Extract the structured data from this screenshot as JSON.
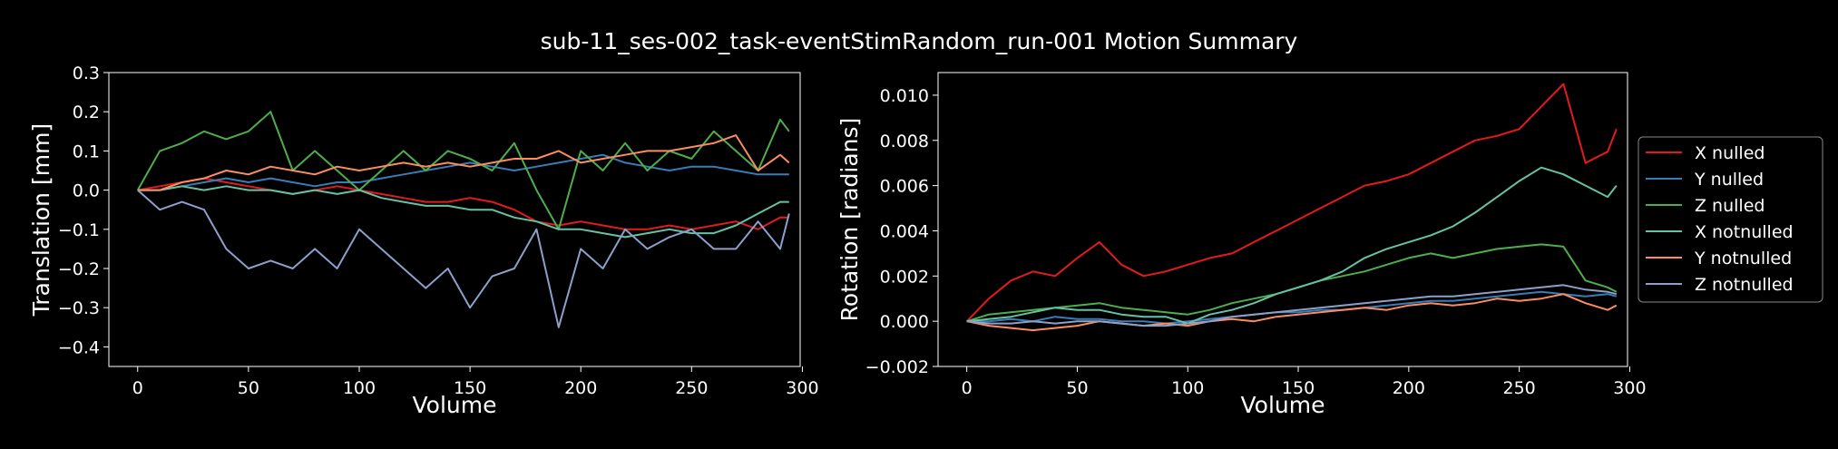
{
  "figure": {
    "title": "sub-11_ses-002_task-eventStimRandom_run-001 Motion Summary",
    "background": "#000000"
  },
  "chart_data": [
    {
      "type": "line",
      "xlabel": "Volume",
      "ylabel": "Translation [mm]",
      "xlim": [
        -13,
        299
      ],
      "ylim": [
        -0.45,
        0.3
      ],
      "xticks": [
        0,
        50,
        100,
        150,
        200,
        250,
        300
      ],
      "yticks": [
        -0.4,
        -0.3,
        -0.2,
        -0.1,
        0.0,
        0.1,
        0.2,
        0.3
      ],
      "ytick_labels": [
        "−0.4",
        "−0.3",
        "−0.2",
        "−0.1",
        "0.0",
        "0.1",
        "0.2",
        "0.3"
      ],
      "grid": false,
      "x": [
        0,
        10,
        20,
        30,
        40,
        50,
        60,
        70,
        80,
        90,
        100,
        110,
        120,
        130,
        140,
        150,
        160,
        170,
        180,
        190,
        200,
        210,
        220,
        230,
        240,
        250,
        260,
        270,
        280,
        290,
        294
      ],
      "series": [
        {
          "name": "X nulled",
          "color": "#e41a1c",
          "values": [
            0.0,
            0.01,
            0.02,
            0.03,
            0.02,
            0.01,
            0.0,
            -0.01,
            0.0,
            0.01,
            0.0,
            -0.01,
            -0.02,
            -0.03,
            -0.03,
            -0.02,
            -0.03,
            -0.05,
            -0.08,
            -0.09,
            -0.08,
            -0.09,
            -0.1,
            -0.1,
            -0.09,
            -0.1,
            -0.09,
            -0.08,
            -0.1,
            -0.07,
            -0.07
          ]
        },
        {
          "name": "Y nulled",
          "color": "#377eb8",
          "values": [
            0.0,
            0.0,
            0.01,
            0.02,
            0.03,
            0.02,
            0.03,
            0.02,
            0.01,
            0.02,
            0.02,
            0.03,
            0.04,
            0.05,
            0.06,
            0.07,
            0.06,
            0.05,
            0.06,
            0.07,
            0.08,
            0.09,
            0.07,
            0.06,
            0.05,
            0.06,
            0.06,
            0.05,
            0.04,
            0.04,
            0.04
          ]
        },
        {
          "name": "Z nulled",
          "color": "#4daf4a",
          "values": [
            0.0,
            0.1,
            0.12,
            0.15,
            0.13,
            0.15,
            0.2,
            0.05,
            0.1,
            0.05,
            0.0,
            0.05,
            0.1,
            0.05,
            0.1,
            0.08,
            0.05,
            0.12,
            0.0,
            -0.1,
            0.1,
            0.05,
            0.12,
            0.05,
            0.1,
            0.08,
            0.15,
            0.1,
            0.05,
            0.18,
            0.15
          ]
        },
        {
          "name": "X notnulled",
          "color": "#66c2a5",
          "values": [
            0.0,
            0.0,
            0.01,
            0.0,
            0.01,
            0.0,
            0.0,
            -0.01,
            0.0,
            -0.01,
            0.0,
            -0.02,
            -0.03,
            -0.04,
            -0.04,
            -0.05,
            -0.05,
            -0.07,
            -0.08,
            -0.1,
            -0.1,
            -0.11,
            -0.12,
            -0.11,
            -0.1,
            -0.11,
            -0.11,
            -0.09,
            -0.06,
            -0.03,
            -0.03
          ]
        },
        {
          "name": "Y notnulled",
          "color": "#fc8d62",
          "values": [
            0.0,
            0.0,
            0.02,
            0.03,
            0.05,
            0.04,
            0.06,
            0.05,
            0.04,
            0.06,
            0.05,
            0.06,
            0.07,
            0.06,
            0.07,
            0.06,
            0.07,
            0.08,
            0.08,
            0.1,
            0.07,
            0.08,
            0.09,
            0.1,
            0.1,
            0.11,
            0.12,
            0.14,
            0.05,
            0.09,
            0.07
          ]
        },
        {
          "name": "Z notnulled",
          "color": "#8da0cb",
          "values": [
            0.0,
            -0.05,
            -0.03,
            -0.05,
            -0.15,
            -0.2,
            -0.18,
            -0.2,
            -0.15,
            -0.2,
            -0.1,
            -0.15,
            -0.2,
            -0.25,
            -0.2,
            -0.3,
            -0.22,
            -0.2,
            -0.1,
            -0.35,
            -0.15,
            -0.2,
            -0.1,
            -0.15,
            -0.12,
            -0.1,
            -0.15,
            -0.15,
            -0.08,
            -0.15,
            -0.06
          ]
        }
      ]
    },
    {
      "type": "line",
      "xlabel": "Volume",
      "ylabel": "Rotation [radians]",
      "xlim": [
        -13,
        299
      ],
      "ylim": [
        -0.002,
        0.011
      ],
      "xticks": [
        0,
        50,
        100,
        150,
        200,
        250,
        300
      ],
      "yticks": [
        -0.002,
        0.0,
        0.002,
        0.004,
        0.006,
        0.008,
        0.01
      ],
      "ytick_labels": [
        "−0.002",
        "0.000",
        "0.002",
        "0.004",
        "0.006",
        "0.008",
        "0.010"
      ],
      "grid": false,
      "legend_position": "outside-right",
      "x": [
        0,
        10,
        20,
        30,
        40,
        50,
        60,
        70,
        80,
        90,
        100,
        110,
        120,
        130,
        140,
        150,
        160,
        170,
        180,
        190,
        200,
        210,
        220,
        230,
        240,
        250,
        260,
        270,
        280,
        290,
        294
      ],
      "series": [
        {
          "name": "X nulled",
          "color": "#e41a1c",
          "values": [
            0.0,
            0.001,
            0.0018,
            0.0022,
            0.002,
            0.0028,
            0.0035,
            0.0025,
            0.002,
            0.0022,
            0.0025,
            0.0028,
            0.003,
            0.0035,
            0.004,
            0.0045,
            0.005,
            0.0055,
            0.006,
            0.0062,
            0.0065,
            0.007,
            0.0075,
            0.008,
            0.0082,
            0.0085,
            0.0095,
            0.0105,
            0.007,
            0.0075,
            0.0085
          ]
        },
        {
          "name": "Y nulled",
          "color": "#377eb8",
          "values": [
            0.0,
            0.0,
            0.0001,
            0.0,
            0.0002,
            0.0001,
            0.0001,
            0.0,
            0.0,
            -0.0001,
            0.0,
            0.0001,
            0.0002,
            0.0003,
            0.0004,
            0.0004,
            0.0005,
            0.0005,
            0.0006,
            0.0007,
            0.0008,
            0.0009,
            0.0009,
            0.001,
            0.0011,
            0.0012,
            0.0013,
            0.0012,
            0.0011,
            0.0012,
            0.0011
          ]
        },
        {
          "name": "Z nulled",
          "color": "#4daf4a",
          "values": [
            0.0,
            0.0003,
            0.0004,
            0.0005,
            0.0006,
            0.0007,
            0.0008,
            0.0006,
            0.0005,
            0.0004,
            0.0003,
            0.0005,
            0.0008,
            0.001,
            0.0012,
            0.0015,
            0.0018,
            0.002,
            0.0022,
            0.0025,
            0.0028,
            0.003,
            0.0028,
            0.003,
            0.0032,
            0.0033,
            0.0034,
            0.0033,
            0.0018,
            0.0015,
            0.0013
          ]
        },
        {
          "name": "X notnulled",
          "color": "#66c2a5",
          "values": [
            0.0,
            0.0001,
            0.0002,
            0.0004,
            0.0006,
            0.0005,
            0.0005,
            0.0003,
            0.0002,
            0.0002,
            -0.0001,
            0.0003,
            0.0005,
            0.0008,
            0.0012,
            0.0015,
            0.0018,
            0.0022,
            0.0028,
            0.0032,
            0.0035,
            0.0038,
            0.0042,
            0.0048,
            0.0055,
            0.0062,
            0.0068,
            0.0065,
            0.006,
            0.0055,
            0.006
          ]
        },
        {
          "name": "Y notnulled",
          "color": "#fc8d62",
          "values": [
            0.0,
            -0.0002,
            -0.0003,
            -0.0004,
            -0.0003,
            -0.0002,
            0.0,
            -0.0001,
            -0.0002,
            -0.0001,
            -0.0002,
            0.0,
            0.0001,
            0.0,
            0.0002,
            0.0003,
            0.0004,
            0.0005,
            0.0006,
            0.0005,
            0.0007,
            0.0008,
            0.0007,
            0.0008,
            0.001,
            0.0009,
            0.001,
            0.0012,
            0.0008,
            0.0005,
            0.0007
          ]
        },
        {
          "name": "Z notnulled",
          "color": "#8da0cb",
          "values": [
            0.0,
            -0.0001,
            -0.0001,
            0.0,
            -0.0001,
            0.0,
            0.0,
            -0.0001,
            -0.0002,
            -0.0002,
            -0.0001,
            0.0,
            0.0002,
            0.0003,
            0.0004,
            0.0005,
            0.0006,
            0.0007,
            0.0008,
            0.0009,
            0.001,
            0.0011,
            0.0011,
            0.0012,
            0.0013,
            0.0014,
            0.0015,
            0.0016,
            0.0014,
            0.0013,
            0.0012
          ]
        }
      ]
    }
  ]
}
